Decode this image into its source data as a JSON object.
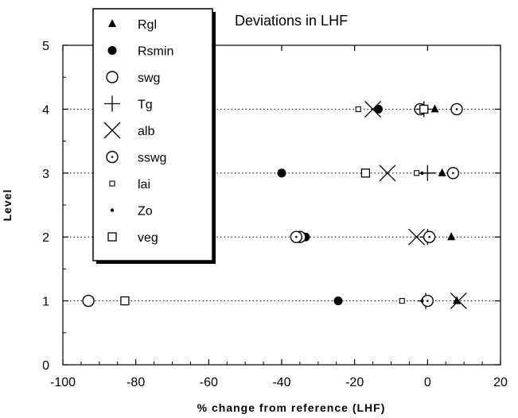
{
  "chart_data": {
    "type": "scatter",
    "title": "Deviations in LHF",
    "xlabel": "% change from reference (LHF)",
    "ylabel": "Level",
    "xlim": [
      -100,
      20
    ],
    "ylim": [
      0,
      5
    ],
    "xticks": [
      "-100",
      "-80",
      "-60",
      "-40",
      "-20",
      "0",
      "20"
    ],
    "yticks": [
      "0",
      "1",
      "2",
      "3",
      "4",
      "5"
    ],
    "grid": "horizontal dotted lines at each level",
    "legend_position": "top-left",
    "series": [
      {
        "name": "Rgl",
        "marker": "filled-triangle",
        "points": [
          {
            "x": 2,
            "y": 4
          },
          {
            "x": 4,
            "y": 3
          },
          {
            "x": 6.5,
            "y": 2
          },
          {
            "x": 8,
            "y": 1
          }
        ]
      },
      {
        "name": "Rsmin",
        "marker": "filled-circle",
        "points": [
          {
            "x": -13.5,
            "y": 4
          },
          {
            "x": -40,
            "y": 3
          },
          {
            "x": -33.5,
            "y": 2
          },
          {
            "x": -24.5,
            "y": 1
          }
        ]
      },
      {
        "name": "swg",
        "marker": "open-circle",
        "points": [
          {
            "x": -2,
            "y": 4
          },
          {
            "x": -35,
            "y": 2
          },
          {
            "x": -93,
            "y": 1
          }
        ]
      },
      {
        "name": "Tg",
        "marker": "plus",
        "points": [
          {
            "x": -1,
            "y": 4
          },
          {
            "x": 0,
            "y": 3
          },
          {
            "x": 0,
            "y": 2
          },
          {
            "x": -0.5,
            "y": 1
          }
        ]
      },
      {
        "name": "alb",
        "marker": "x",
        "points": [
          {
            "x": -15,
            "y": 4
          },
          {
            "x": -11,
            "y": 3
          },
          {
            "x": -3,
            "y": 2
          },
          {
            "x": 8.5,
            "y": 1
          }
        ]
      },
      {
        "name": "sswg",
        "marker": "open-circle-dot",
        "points": [
          {
            "x": 8,
            "y": 4
          },
          {
            "x": 7,
            "y": 3
          },
          {
            "x": -36,
            "y": 2
          },
          {
            "x": 0.5,
            "y": 2
          },
          {
            "x": 0,
            "y": 1
          }
        ]
      },
      {
        "name": "lai",
        "marker": "small-square",
        "points": [
          {
            "x": -19,
            "y": 4
          },
          {
            "x": -3,
            "y": 3
          },
          {
            "x": -7,
            "y": 1
          }
        ]
      },
      {
        "name": "Zo",
        "marker": "small-dot",
        "points": [
          {
            "x": -1.5,
            "y": 3
          },
          {
            "x": -1.5,
            "y": 1
          }
        ]
      },
      {
        "name": "veg",
        "marker": "open-square",
        "points": [
          {
            "x": -1,
            "y": 4
          },
          {
            "x": -17,
            "y": 3
          },
          {
            "x": -83,
            "y": 1
          }
        ]
      }
    ],
    "legend_entries": [
      {
        "label": "Rgl",
        "marker": "filled-triangle"
      },
      {
        "label": "Rsmin",
        "marker": "filled-circle"
      },
      {
        "label": "swg",
        "marker": "open-circle"
      },
      {
        "label": "Tg",
        "marker": "plus"
      },
      {
        "label": "alb",
        "marker": "x"
      },
      {
        "label": "sswg",
        "marker": "open-circle-dot"
      },
      {
        "label": "lai",
        "marker": "small-square"
      },
      {
        "label": "Zo",
        "marker": "small-dot"
      },
      {
        "label": "veg",
        "marker": "open-square"
      }
    ]
  }
}
